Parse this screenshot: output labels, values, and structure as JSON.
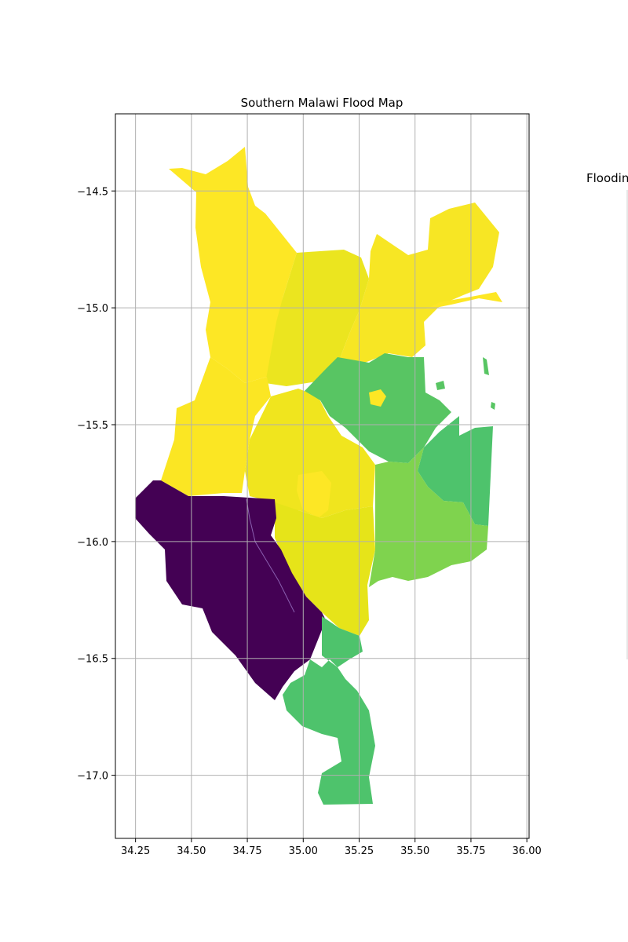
{
  "chart_data": {
    "type": "choropleth-map",
    "title": "Southern Malawi Flood Map",
    "legend_title": "Flooding",
    "xlim": [
      34.16,
      36.01
    ],
    "ylim": [
      -17.27,
      -14.17
    ],
    "xticks": [
      34.25,
      34.5,
      34.75,
      35.0,
      35.25,
      35.5,
      35.75,
      36.0
    ],
    "xtick_labels": [
      "34.25",
      "34.50",
      "34.75",
      "35.00",
      "35.25",
      "35.50",
      "35.75",
      "36.00"
    ],
    "yticks": [
      -14.5,
      -15.0,
      -15.5,
      -16.0,
      -16.5,
      -17.0
    ],
    "ytick_labels": [
      "−14.5",
      "−15.0",
      "−15.5",
      "−16.0",
      "−16.5",
      "−17.0"
    ],
    "grid": true,
    "colormap": "viridis",
    "colors": {
      "dark_purple": "#440154",
      "green": "#4fc16b",
      "light_green": "#7fd34e",
      "yellow": "#fde725",
      "yellow_alt": "#f1e51d",
      "yellow_olive": "#e5e419"
    }
  }
}
